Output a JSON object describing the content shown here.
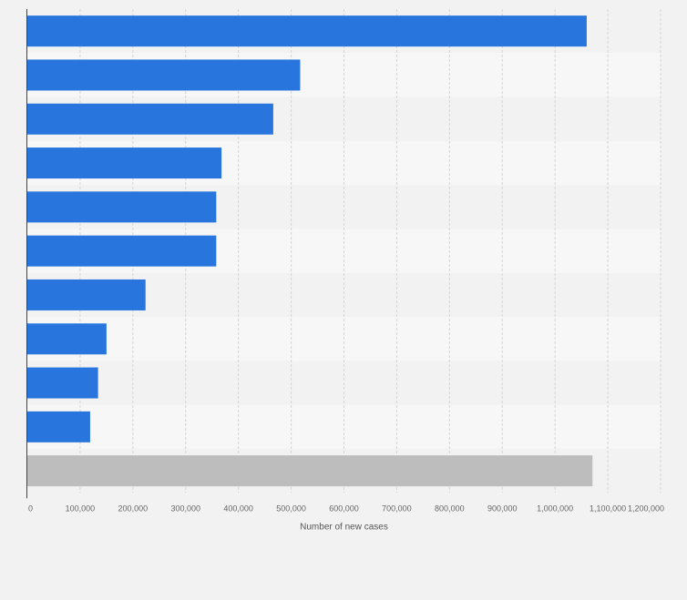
{
  "chart_data": {
    "type": "bar",
    "orientation": "horizontal",
    "categories": [
      "",
      "",
      "",
      "",
      "",
      "",
      "",
      "",
      "",
      "",
      ""
    ],
    "values": [
      1060000,
      517000,
      466000,
      368000,
      358000,
      358000,
      224000,
      150000,
      134000,
      119000,
      1071000
    ],
    "bar_colors": [
      "#2876dd",
      "#2876dd",
      "#2876dd",
      "#2876dd",
      "#2876dd",
      "#2876dd",
      "#2876dd",
      "#2876dd",
      "#2876dd",
      "#2876dd",
      "#bdbdbd"
    ],
    "xlim": [
      0,
      1200000
    ],
    "x_ticks": [
      0,
      100000,
      200000,
      300000,
      400000,
      500000,
      600000,
      700000,
      800000,
      900000,
      1000000,
      1100000,
      1200000
    ],
    "x_tick_labels": [
      "0",
      "100,000",
      "200,000",
      "300,000",
      "400,000",
      "500,000",
      "600,000",
      "700,000",
      "800,000",
      "900,000",
      "1,000,000",
      "1,100,000",
      "1,200,000"
    ],
    "xlabel": "Number of new cases",
    "ylabel": "",
    "title": "",
    "grid": "vertical-dashed",
    "legend": "none"
  },
  "colors": {
    "background": "#f2f2f2",
    "band_even": "#f2f2f2",
    "band_odd": "#f7f7f7",
    "grid": "#d4d4d4",
    "axis": "#444444",
    "tick_text": "#666666"
  }
}
